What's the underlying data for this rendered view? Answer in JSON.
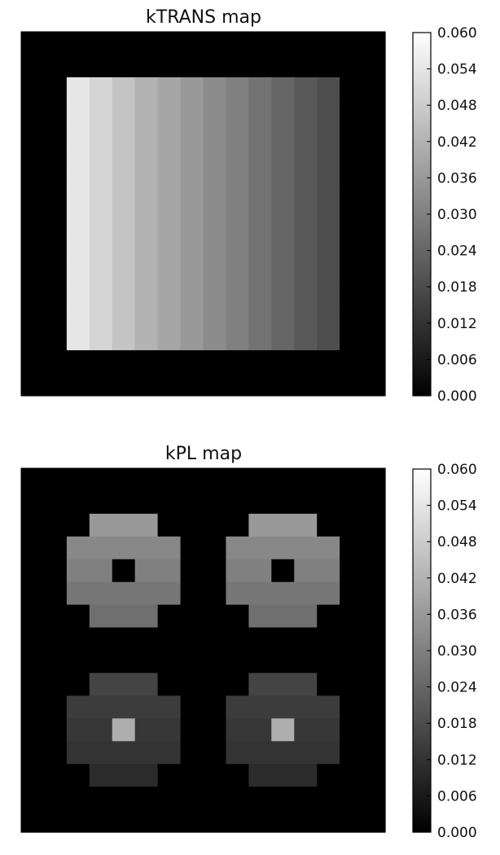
{
  "chart_data": [
    {
      "type": "heatmap",
      "title": "kTRANS map",
      "colormap": "gray",
      "vmin": 0.0,
      "vmax": 0.06,
      "colorbar_ticks": [
        "0.000",
        "0.006",
        "0.012",
        "0.018",
        "0.024",
        "0.030",
        "0.036",
        "0.042",
        "0.048",
        "0.054",
        "0.060"
      ],
      "grid_rows": 16,
      "grid_cols": 16,
      "rows": [
        [
          0,
          0,
          0,
          0,
          0,
          0,
          0,
          0,
          0,
          0,
          0,
          0,
          0,
          0,
          0,
          0
        ],
        [
          0,
          0,
          0,
          0,
          0,
          0,
          0,
          0,
          0,
          0,
          0,
          0,
          0,
          0,
          0,
          0
        ],
        [
          0,
          0,
          0.054,
          0.05,
          0.046,
          0.042,
          0.039,
          0.036,
          0.033,
          0.03,
          0.027,
          0.024,
          0.021,
          0.018,
          0,
          0
        ],
        [
          0,
          0,
          0.054,
          0.05,
          0.046,
          0.042,
          0.039,
          0.036,
          0.033,
          0.03,
          0.027,
          0.024,
          0.021,
          0.018,
          0,
          0
        ],
        [
          0,
          0,
          0.054,
          0.05,
          0.046,
          0.042,
          0.039,
          0.036,
          0.033,
          0.03,
          0.027,
          0.024,
          0.021,
          0.018,
          0,
          0
        ],
        [
          0,
          0,
          0.054,
          0.05,
          0.046,
          0.042,
          0.039,
          0.036,
          0.033,
          0.03,
          0.027,
          0.024,
          0.021,
          0.018,
          0,
          0
        ],
        [
          0,
          0,
          0.054,
          0.05,
          0.046,
          0.042,
          0.039,
          0.036,
          0.033,
          0.03,
          0.027,
          0.024,
          0.021,
          0.018,
          0,
          0
        ],
        [
          0,
          0,
          0.054,
          0.05,
          0.046,
          0.042,
          0.039,
          0.036,
          0.033,
          0.03,
          0.027,
          0.024,
          0.021,
          0.018,
          0,
          0
        ],
        [
          0,
          0,
          0.054,
          0.05,
          0.046,
          0.042,
          0.039,
          0.036,
          0.033,
          0.03,
          0.027,
          0.024,
          0.021,
          0.018,
          0,
          0
        ],
        [
          0,
          0,
          0.054,
          0.05,
          0.046,
          0.042,
          0.039,
          0.036,
          0.033,
          0.03,
          0.027,
          0.024,
          0.021,
          0.018,
          0,
          0
        ],
        [
          0,
          0,
          0.054,
          0.05,
          0.046,
          0.042,
          0.039,
          0.036,
          0.033,
          0.03,
          0.027,
          0.024,
          0.021,
          0.018,
          0,
          0
        ],
        [
          0,
          0,
          0.054,
          0.05,
          0.046,
          0.042,
          0.039,
          0.036,
          0.033,
          0.03,
          0.027,
          0.024,
          0.021,
          0.018,
          0,
          0
        ],
        [
          0,
          0,
          0.054,
          0.05,
          0.046,
          0.042,
          0.039,
          0.036,
          0.033,
          0.03,
          0.027,
          0.024,
          0.021,
          0.018,
          0,
          0
        ],
        [
          0,
          0,
          0.054,
          0.05,
          0.046,
          0.042,
          0.039,
          0.036,
          0.033,
          0.03,
          0.027,
          0.024,
          0.021,
          0.018,
          0,
          0
        ],
        [
          0,
          0,
          0,
          0,
          0,
          0,
          0,
          0,
          0,
          0,
          0,
          0,
          0,
          0,
          0,
          0
        ],
        [
          0,
          0,
          0,
          0,
          0,
          0,
          0,
          0,
          0,
          0,
          0,
          0,
          0,
          0,
          0,
          0
        ]
      ]
    },
    {
      "type": "heatmap",
      "title": "kPL map",
      "colormap": "gray",
      "vmin": 0.0,
      "vmax": 0.06,
      "colorbar_ticks": [
        "0.000",
        "0.006",
        "0.012",
        "0.018",
        "0.024",
        "0.030",
        "0.036",
        "0.042",
        "0.048",
        "0.054",
        "0.060"
      ],
      "grid_rows": 16,
      "grid_cols": 16,
      "rows": [
        [
          0,
          0,
          0,
          0,
          0,
          0,
          0,
          0,
          0,
          0,
          0,
          0,
          0,
          0,
          0,
          0
        ],
        [
          0,
          0,
          0,
          0,
          0,
          0,
          0,
          0,
          0,
          0,
          0,
          0,
          0,
          0,
          0,
          0
        ],
        [
          0,
          0,
          0,
          0.036,
          0.036,
          0.036,
          0,
          0,
          0,
          0,
          0.036,
          0.036,
          0.036,
          0,
          0,
          0
        ],
        [
          0,
          0,
          0.032,
          0.032,
          0.032,
          0.032,
          0.032,
          0,
          0,
          0.032,
          0.032,
          0.032,
          0.032,
          0.032,
          0,
          0
        ],
        [
          0,
          0,
          0.03,
          0.03,
          0,
          0.03,
          0.03,
          0,
          0,
          0.03,
          0.03,
          0,
          0.03,
          0.03,
          0,
          0
        ],
        [
          0,
          0,
          0.028,
          0.028,
          0.028,
          0.028,
          0.028,
          0,
          0,
          0.028,
          0.028,
          0.028,
          0.028,
          0.028,
          0,
          0
        ],
        [
          0,
          0,
          0,
          0.026,
          0.026,
          0.026,
          0,
          0,
          0,
          0,
          0.026,
          0.026,
          0.026,
          0,
          0,
          0
        ],
        [
          0,
          0,
          0,
          0,
          0,
          0,
          0,
          0,
          0,
          0,
          0,
          0,
          0,
          0,
          0,
          0
        ],
        [
          0,
          0,
          0,
          0,
          0,
          0,
          0,
          0,
          0,
          0,
          0,
          0,
          0,
          0,
          0,
          0
        ],
        [
          0,
          0,
          0,
          0.016,
          0.016,
          0.016,
          0,
          0,
          0,
          0,
          0.016,
          0.016,
          0.016,
          0,
          0,
          0
        ],
        [
          0,
          0,
          0.014,
          0.014,
          0.014,
          0.014,
          0.014,
          0,
          0,
          0.014,
          0.014,
          0.014,
          0.014,
          0.014,
          0,
          0
        ],
        [
          0,
          0,
          0.013,
          0.013,
          0.041,
          0.013,
          0.013,
          0,
          0,
          0.013,
          0.013,
          0.041,
          0.013,
          0.013,
          0,
          0
        ],
        [
          0,
          0,
          0.012,
          0.012,
          0.012,
          0.012,
          0.012,
          0,
          0,
          0.012,
          0.012,
          0.012,
          0.012,
          0.012,
          0,
          0
        ],
        [
          0,
          0,
          0,
          0.01,
          0.01,
          0.01,
          0,
          0,
          0,
          0,
          0.01,
          0.01,
          0.01,
          0,
          0,
          0
        ],
        [
          0,
          0,
          0,
          0,
          0,
          0,
          0,
          0,
          0,
          0,
          0,
          0,
          0,
          0,
          0,
          0
        ],
        [
          0,
          0,
          0,
          0,
          0,
          0,
          0,
          0,
          0,
          0,
          0,
          0,
          0,
          0,
          0,
          0
        ]
      ]
    }
  ]
}
